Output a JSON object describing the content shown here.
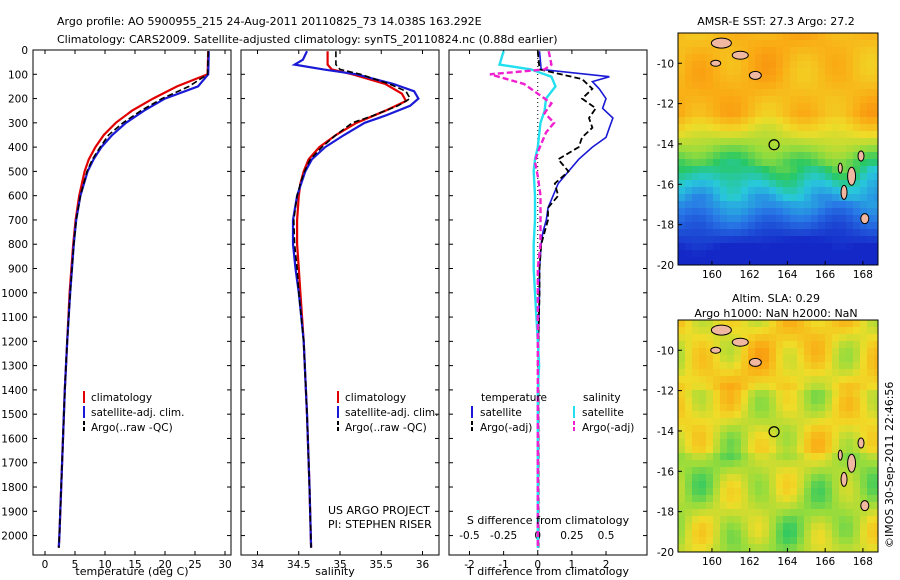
{
  "header": {
    "line1": "Argo profile: AO 5900955_215 24-Aug-2011 20110825_73 14.038S 163.292E",
    "line2": "Climatology: CARS2009. Satellite-adjusted climatology: synTS_20110824.nc (0.88d earlier)"
  },
  "colors": {
    "climatology": "#e00000",
    "satellite": "#1a1ad6",
    "argo": "#000000",
    "sat_salinity": "#22e0f0",
    "argo_salinity": "#f020d0"
  },
  "chart_data": [
    {
      "type": "line",
      "id": "temperature",
      "xlabel": "temperature (deg C)",
      "ylabel": "",
      "xlim": [
        -2,
        31
      ],
      "ylim": [
        2080,
        0
      ],
      "xticks": [
        "0",
        "5",
        "10",
        "15",
        "20",
        "25",
        "30"
      ],
      "xtick_values": [
        0,
        5,
        10,
        15,
        20,
        25,
        30
      ],
      "yticks": [
        "0",
        "100",
        "200",
        "300",
        "400",
        "500",
        "600",
        "700",
        "800",
        "900",
        "1000",
        "1100",
        "1200",
        "1300",
        "1400",
        "1500",
        "1600",
        "1700",
        "1800",
        "1900",
        "2000"
      ],
      "ytick_values": [
        0,
        100,
        200,
        300,
        400,
        500,
        600,
        700,
        800,
        900,
        1000,
        1100,
        1200,
        1300,
        1400,
        1500,
        1600,
        1700,
        1800,
        1900,
        2000
      ],
      "legend": [
        "climatology",
        "satellite-adj. clim.",
        "Argo(..raw -QC)"
      ],
      "legend_loc": "lower-center",
      "series": [
        {
          "name": "climatology",
          "depth": [
            5,
            100,
            150,
            200,
            250,
            300,
            350,
            400,
            450,
            500,
            600,
            700,
            800,
            900,
            1000,
            1200,
            1400,
            1600,
            1800,
            2000,
            2050
          ],
          "values": [
            27.2,
            27.1,
            22,
            18,
            14.5,
            11.8,
            9.8,
            8.4,
            7.3,
            6.6,
            5.7,
            5.1,
            4.7,
            4.4,
            4.1,
            3.7,
            3.3,
            3.0,
            2.7,
            2.4,
            2.3
          ]
        },
        {
          "name": "satellite-adj. clim.",
          "depth": [
            5,
            100,
            150,
            200,
            250,
            300,
            350,
            400,
            450,
            500,
            600,
            700,
            800,
            900,
            1000,
            1200,
            1400,
            1600,
            1800,
            2000,
            2050
          ],
          "values": [
            27.3,
            27.2,
            25.5,
            20,
            16.5,
            13.5,
            11.2,
            9.4,
            8.1,
            7.1,
            5.9,
            5.2,
            4.8,
            4.5,
            4.2,
            3.7,
            3.3,
            3.0,
            2.7,
            2.4,
            2.3
          ]
        },
        {
          "name": "Argo(..raw -QC)",
          "depth": [
            5,
            100,
            150,
            200,
            250,
            300,
            350,
            400,
            450,
            500,
            600,
            700,
            800,
            900,
            1000,
            1200,
            1400,
            1600,
            1800,
            2000,
            2050
          ],
          "values": [
            27.2,
            27.1,
            24,
            19.5,
            16,
            13,
            10.6,
            9.2,
            7.9,
            7.0,
            5.9,
            5.2,
            4.8,
            4.5,
            4.2,
            3.7,
            3.3,
            3.0,
            2.7,
            2.4,
            2.3
          ]
        }
      ]
    },
    {
      "type": "line",
      "id": "salinity",
      "xlabel": "salinity",
      "xlim": [
        33.8,
        36.2
      ],
      "ylim": [
        2080,
        0
      ],
      "xticks": [
        "34",
        "34.5",
        "35",
        "35.5",
        "36"
      ],
      "xtick_values": [
        34,
        34.5,
        35,
        35.5,
        36
      ],
      "legend": [
        "climatology",
        "satellite-adj. clim.",
        "Argo(..raw -QC)"
      ],
      "legend_loc": "lower-center",
      "annotations": [
        "US ARGO PROJECT",
        "PI: STEPHEN RISER"
      ],
      "series": [
        {
          "name": "climatology",
          "depth": [
            5,
            60,
            80,
            100,
            140,
            180,
            210,
            250,
            300,
            350,
            400,
            450,
            500,
            550,
            600,
            700,
            800,
            900,
            1000,
            1200,
            1500,
            1800,
            2050
          ],
          "values": [
            34.85,
            34.85,
            34.9,
            35.15,
            35.55,
            35.75,
            35.8,
            35.55,
            35.2,
            34.95,
            34.75,
            34.62,
            34.56,
            34.52,
            34.5,
            34.48,
            34.48,
            34.5,
            34.52,
            34.56,
            34.6,
            34.63,
            34.65
          ]
        },
        {
          "name": "satellite-adj. clim.",
          "depth": [
            5,
            40,
            60,
            80,
            100,
            140,
            170,
            200,
            230,
            270,
            300,
            350,
            400,
            450,
            500,
            550,
            600,
            700,
            800,
            900,
            1000,
            1200,
            1500,
            1800,
            2050
          ],
          "values": [
            34.6,
            34.55,
            34.45,
            34.8,
            35.2,
            35.65,
            35.9,
            35.95,
            35.85,
            35.55,
            35.3,
            35.05,
            34.82,
            34.66,
            34.58,
            34.53,
            34.48,
            34.43,
            34.43,
            34.46,
            34.5,
            34.56,
            34.6,
            34.63,
            34.65
          ]
        },
        {
          "name": "Argo(..raw -QC)",
          "depth": [
            5,
            60,
            80,
            100,
            140,
            170,
            200,
            230,
            270,
            300,
            350,
            400,
            450,
            500,
            550,
            600,
            700,
            800,
            900,
            1000,
            1200,
            1500,
            1800,
            2050
          ],
          "values": [
            34.95,
            34.95,
            35.0,
            35.25,
            35.6,
            35.8,
            35.85,
            35.7,
            35.4,
            35.15,
            34.95,
            34.78,
            34.64,
            34.57,
            34.52,
            34.48,
            34.44,
            34.45,
            34.48,
            34.5,
            34.56,
            34.6,
            34.63,
            34.65
          ]
        }
      ]
    },
    {
      "type": "line",
      "id": "differences",
      "xlabel": "T difference from climatology",
      "xlabel_top": "S difference from climatology",
      "xlim": [
        -2.6,
        3.2
      ],
      "ylim": [
        2080,
        0
      ],
      "xticks": [
        "-2",
        "-1",
        "0",
        "1",
        "2"
      ],
      "xtick_values": [
        -2,
        -1,
        0,
        1,
        2
      ],
      "sticks": [
        "-0.5",
        "-0.25",
        "0",
        "0.25",
        "0.5"
      ],
      "stick_values": [
        -0.5,
        -0.25,
        0,
        0.25,
        0.5
      ],
      "legend_left_title": "temperature",
      "legend_right_title": "salinity",
      "legend_left": [
        "satellite",
        "Argo(-adj)"
      ],
      "legend_right": [
        "satellite",
        "Argo(-adj)"
      ],
      "series": [
        {
          "name": "T satellite",
          "depth": [
            5,
            80,
            110,
            130,
            160,
            200,
            240,
            280,
            320,
            360,
            400,
            450,
            500,
            550,
            600,
            650,
            700,
            750,
            800,
            900,
            1000,
            1200,
            1500,
            2050
          ],
          "values": [
            0.05,
            0.1,
            2.1,
            1.6,
            1.8,
            2.0,
            1.9,
            2.2,
            2.1,
            2.0,
            1.6,
            1.2,
            0.9,
            0.6,
            0.45,
            0.3,
            0.25,
            0.15,
            0.1,
            0.05,
            0.05,
            0.02,
            0.02,
            0.02
          ]
        },
        {
          "name": "T Argo(-adj)",
          "depth": [
            5,
            80,
            120,
            160,
            200,
            240,
            280,
            320,
            360,
            400,
            450,
            500,
            550,
            600,
            650,
            700,
            750,
            800,
            900,
            1000,
            1200,
            2050
          ],
          "values": [
            0.0,
            0.05,
            1.3,
            1.6,
            1.3,
            1.7,
            1.5,
            1.6,
            1.3,
            1.2,
            0.6,
            0.9,
            0.5,
            0.6,
            0.3,
            0.3,
            0.2,
            0.1,
            0.05,
            0.05,
            0.02,
            0.02
          ]
        },
        {
          "name": "S satellite",
          "depth": [
            5,
            60,
            80,
            110,
            150,
            200,
            250,
            300,
            350,
            400,
            450,
            500,
            600,
            700,
            800,
            900,
            1000,
            1100,
            1200,
            1300,
            1400,
            1500,
            1700,
            2050
          ],
          "values": [
            -0.25,
            -0.28,
            -0.05,
            0.1,
            0.13,
            0.06,
            0.05,
            0.02,
            0.01,
            0.0,
            -0.02,
            -0.03,
            -0.02,
            -0.02,
            -0.03,
            -0.03,
            -0.02,
            -0.01,
            0.0,
            0.01,
            0.0,
            0.0,
            0.0,
            0.0
          ]
        },
        {
          "name": "S Argo(-adj)",
          "depth": [
            5,
            60,
            80,
            100,
            140,
            180,
            220,
            260,
            300,
            340,
            380,
            420,
            460,
            520,
            600,
            700,
            800,
            900,
            1000,
            1200,
            2050
          ],
          "values": [
            0.08,
            0.1,
            0.05,
            -0.35,
            -0.1,
            0.0,
            0.1,
            0.05,
            0.12,
            0.06,
            0.03,
            0.0,
            -0.02,
            0.0,
            0.02,
            0.02,
            0.02,
            0.0,
            0.0,
            0.0,
            0.0
          ]
        }
      ]
    },
    {
      "type": "heatmap",
      "id": "sst-map",
      "title": "AMSR-E SST: 27.3 Argo: 27.2",
      "xlim": [
        158.2,
        168.8
      ],
      "ylim": [
        -20,
        -8.5
      ],
      "xticks": [
        "160",
        "162",
        "164",
        "166",
        "168"
      ],
      "yticks": [
        "-10",
        "-12",
        "-14",
        "-16",
        "-18",
        "-20"
      ],
      "marker": {
        "lon": 163.292,
        "lat": -14.038
      }
    },
    {
      "type": "heatmap",
      "id": "sla-map",
      "title": "Altim. SLA: 0.29",
      "subtitle": "Argo h1000: NaN h2000: NaN",
      "xlim": [
        158.2,
        168.8
      ],
      "ylim": [
        -20,
        -8.5
      ],
      "xticks": [
        "160",
        "162",
        "164",
        "166",
        "168"
      ],
      "yticks": [
        "-10",
        "-12",
        "-14",
        "-16",
        "-18",
        "-20"
      ],
      "marker": {
        "lon": 163.292,
        "lat": -14.038
      }
    }
  ],
  "credit": "©IMOS 30-Sep-2011 22:46:56"
}
